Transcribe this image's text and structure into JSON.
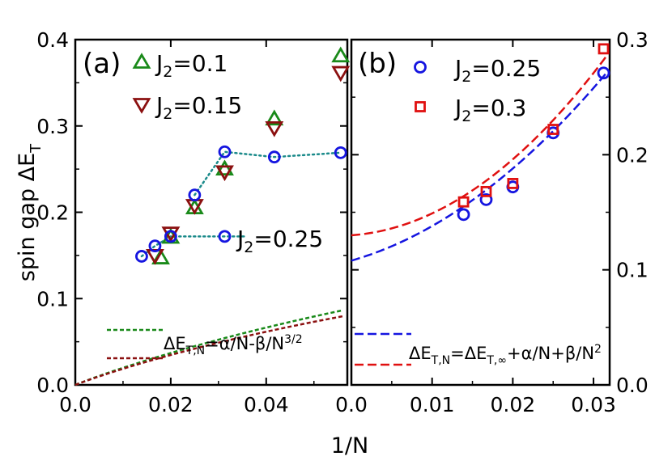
{
  "ylabel": "spin gap ΔE",
  "ylabel_sub": "T",
  "xlabel": "1/N",
  "chart_data": [
    {
      "type": "scatter",
      "panel_label": "(a)",
      "xlim": [
        0,
        0.057
      ],
      "ylim": [
        0,
        0.4
      ],
      "xticks": [
        0,
        0.02,
        0.04
      ],
      "xtick_labels": [
        "0.0",
        "0.02",
        "0.04"
      ],
      "yticks": [
        0,
        0.1,
        0.2,
        0.3,
        0.4
      ],
      "ytick_labels": [
        "0.0",
        "0.1",
        "0.2",
        "0.3",
        "0.4"
      ],
      "grid": false,
      "series": [
        {
          "name": "J2=0.1",
          "label_main": "J",
          "label_sub": "2",
          "label_tail": "=0.1",
          "marker": "triangle-up",
          "color": "#1a8a1a",
          "x": [
            0.0556,
            0.0417,
            0.0313,
            0.025,
            0.02,
            0.0179
          ],
          "y": [
            0.381,
            0.308,
            0.25,
            0.205,
            0.171,
            0.147
          ]
        },
        {
          "name": "J2=0.15",
          "label_main": "J",
          "label_sub": "2",
          "label_tail": "=0.15",
          "marker": "triangle-down",
          "color": "#8b1010",
          "x": [
            0.0556,
            0.0417,
            0.0313,
            0.025,
            0.02,
            0.0167
          ],
          "y": [
            0.362,
            0.298,
            0.247,
            0.208,
            0.176,
            0.15
          ]
        },
        {
          "name": "J2=0.25",
          "label_main": "J",
          "label_sub": "2",
          "label_tail": "=0.25",
          "marker": "circle",
          "color": "#1515e0",
          "x": [
            0.0139,
            0.0167,
            0.02,
            0.025,
            0.0313,
            0.0313,
            0.0417,
            0.0556
          ],
          "y": [
            0.149,
            0.161,
            0.172,
            0.22,
            0.172,
            0.27,
            0.264,
            0.269
          ]
        }
      ],
      "fits": [
        {
          "color": "#1a8a1a",
          "alpha": 2.3,
          "beta": 3.2
        },
        {
          "color": "#8b1010",
          "alpha": 2.2,
          "beta": 3.3
        }
      ],
      "fit_label": "ΔE_T,N=α/N-β/N^3/2"
    },
    {
      "type": "scatter",
      "panel_label": "(b)",
      "xlim": [
        0,
        0.032
      ],
      "ylim": [
        0,
        0.3
      ],
      "xticks": [
        0,
        0.01,
        0.02,
        0.03
      ],
      "xtick_labels": [
        "0.0",
        "0.01",
        "0.02",
        "0.03"
      ],
      "yticks": [
        0,
        0.1,
        0.2,
        0.3
      ],
      "ytick_labels": [
        "0.0",
        "0.1",
        "0.2",
        "0.3"
      ],
      "grid": false,
      "series": [
        {
          "name": "J2=0.25",
          "label_main": "J",
          "label_sub": "2",
          "label_tail": "=0.25",
          "marker": "circle",
          "color": "#1515e0",
          "x": [
            0.0139,
            0.0167,
            0.02,
            0.025,
            0.03125
          ],
          "y": [
            0.148,
            0.161,
            0.172,
            0.219,
            0.271
          ]
        },
        {
          "name": "J2=0.3",
          "label_main": "J",
          "label_sub": "2",
          "label_tail": "=0.3",
          "marker": "square",
          "color": "#e01010",
          "x": [
            0.0139,
            0.0167,
            0.02,
            0.025,
            0.03125
          ],
          "y": [
            0.159,
            0.168,
            0.175,
            0.222,
            0.292
          ]
        }
      ],
      "fits": [
        {
          "color": "#1515e0",
          "e_inf": 0.108,
          "alpha": 2.0,
          "beta": 100
        },
        {
          "color": "#e01010",
          "e_inf": 0.13,
          "alpha": 0.5,
          "beta": 140
        }
      ],
      "fit_label": "ΔE_T,N=ΔE_T,∞+α/N+β/N^2"
    }
  ]
}
